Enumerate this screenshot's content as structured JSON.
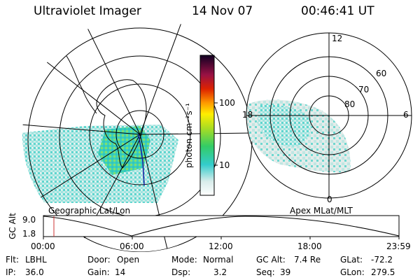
{
  "header": {
    "instrument": "Ultraviolet Imager",
    "date": "14 Nov 07",
    "time": "00:46:41 UT"
  },
  "colorbar": {
    "unit_label": "photon cm⁻²s⁻¹",
    "ticks": [
      "100",
      "10"
    ]
  },
  "geo_map": {
    "label": "Geographic Lat/Lon"
  },
  "apex_map": {
    "label": "Apex MLat/MLT",
    "mlt_labels": {
      "top": "12",
      "right": "6",
      "bottom": "0",
      "left": "18"
    },
    "mlat_labels": [
      "60",
      "70",
      "80"
    ]
  },
  "orbit_plot": {
    "ylabel": "GC Alt",
    "yticks": [
      "9.0",
      "1.8"
    ],
    "xticks": [
      "00:00",
      "06:00",
      "12:00",
      "18:00",
      "23:59"
    ],
    "cursor_color": "#cc3333"
  },
  "status": {
    "flt_label": "Flt:",
    "flt_value": "LBHL",
    "ip_label": "IP:",
    "ip_value": "36.0",
    "door_label": "Door:",
    "door_value": "Open",
    "gain_label": "Gain:",
    "gain_value": "14",
    "mode_label": "Mode:",
    "mode_value": "Normal",
    "dsp_label": "Dsp:",
    "dsp_value": "3.2",
    "gcalt_label": "GC Alt:",
    "gcalt_value": "7.4 Re",
    "seq_label": "Seq:",
    "seq_value": "39",
    "glat_label": "GLat:",
    "glat_value": "-72.2",
    "glon_label": "GLon:",
    "glon_value": "279.5"
  }
}
